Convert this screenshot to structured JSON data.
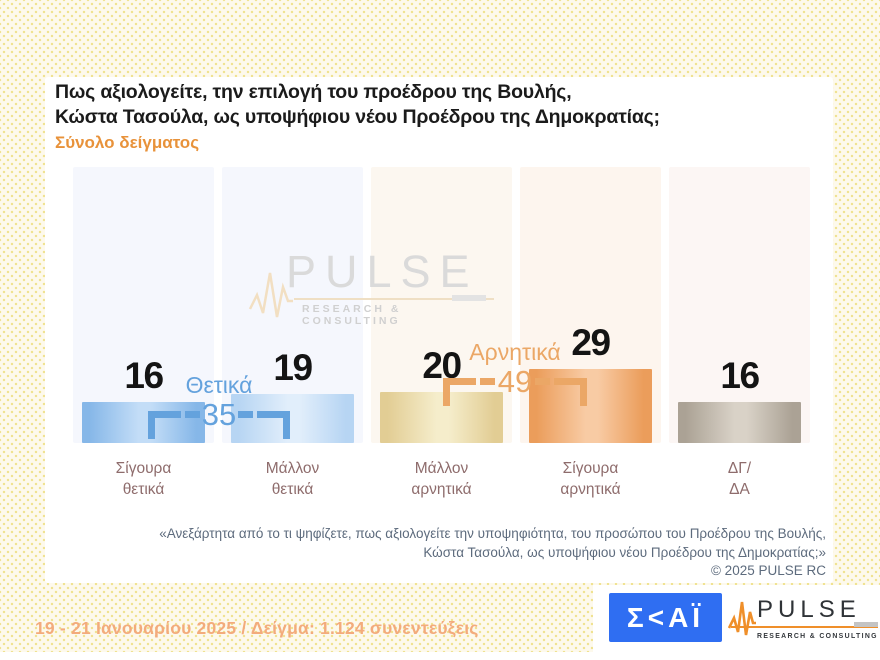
{
  "header": {
    "title": "Πως αξιολογείτε, την επιλογή του προέδρου της Βουλής,\nΚώστα Τασούλα, ως υποψήφιου νέου Προέδρου της Δημοκρατίας;",
    "subtitle": "Σύνολο δείγματος",
    "subtitle_color": "#e8923a"
  },
  "chart_data": {
    "type": "bar",
    "categories": [
      "Σίγουρα\nθετικά",
      "Μάλλον\nθετικά",
      "Μάλλον\nαρνητικά",
      "Σίγουρα\nαρνητικά",
      "ΔΓ/\nΔΑ"
    ],
    "values": [
      16,
      19,
      20,
      29,
      16
    ],
    "unit": "percent of sample",
    "ylim": [
      0,
      100
    ],
    "grid": false,
    "legend": false,
    "bar_colors": [
      [
        "#86b7e8",
        "#c3ddf7"
      ],
      [
        "#b7d5f3",
        "#e1eefb"
      ],
      [
        "#e2cd94",
        "#f5edcb"
      ],
      [
        "#eb9d5b",
        "#f8cba4"
      ],
      [
        "#aba295",
        "#d9d2c7"
      ]
    ],
    "column_bg": [
      "#f5f7fd",
      "#f5f7fd",
      "#fcf7f0",
      "#fdf5ee",
      "#fcf6f4"
    ],
    "groups": [
      {
        "label": "Θετικά",
        "value": 35,
        "color": "#64a2dd",
        "span": [
          0,
          1
        ]
      },
      {
        "label": "Αρνητικά",
        "value": 49,
        "color": "#eba766",
        "span": [
          2,
          3
        ]
      }
    ]
  },
  "watermark": {
    "name": "PULSE",
    "tagline": "RESEARCH & CONSULTING"
  },
  "footnote": {
    "quote": "«Ανεξάρτητα από το τι ψηφίζετε, πως αξιολογείτε την υποψηφιότητα, του προσώπου του Προέδρου της Βουλής,\nΚώστα Τασούλα, ως υποψήφιου νέου Προέδρου της Δημοκρατίας;»",
    "copyright": "©  2025  PULSE RC"
  },
  "footer": {
    "date_sample": "19 - 21 Ιανουαρίου 2025  /  Δείγμα:  1.124 συνεντεύξεις",
    "skai_logo_text": "Σ<ΑΪ",
    "pulse_logo_name": "PULSE",
    "pulse_logo_tagline": "RESEARCH & CONSULTING"
  }
}
